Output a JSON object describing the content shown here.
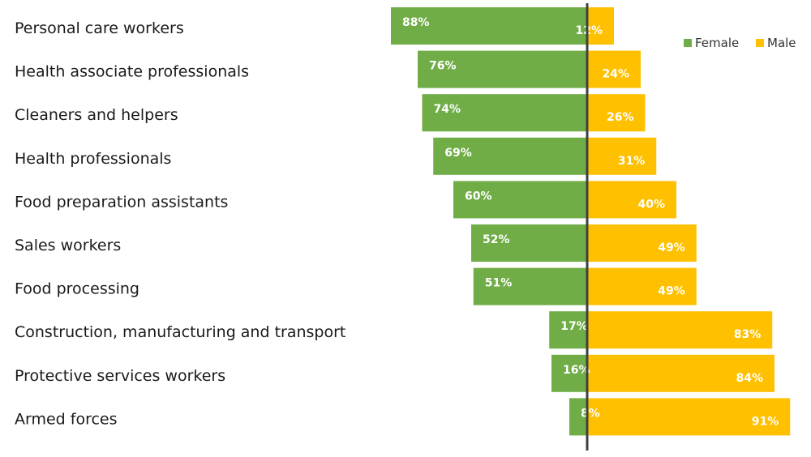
{
  "chart_data": {
    "type": "bar",
    "orientation": "horizontal-diverging",
    "categories": [
      "Personal care workers",
      "Health associate professionals",
      "Cleaners and helpers",
      "Health professionals",
      "Food preparation assistants",
      "Sales workers",
      "Food processing",
      "Construction, manufacturing and transport",
      "Protective services workers",
      "Armed forces"
    ],
    "series": [
      {
        "name": "Female",
        "color": "#70ad47",
        "values": [
          88,
          76,
          74,
          69,
          60,
          52,
          51,
          17,
          16,
          8
        ],
        "labels": [
          "88%",
          "76%",
          "74%",
          "69%",
          "60%",
          "52%",
          "51%",
          "17%",
          "16%",
          "8%"
        ]
      },
      {
        "name": "Male",
        "color": "#ffc000",
        "values": [
          12,
          24,
          26,
          31,
          40,
          49,
          49,
          83,
          84,
          91
        ],
        "labels": [
          "12%",
          "24%",
          "26%",
          "31%",
          "40%",
          "49%",
          "49%",
          "83%",
          "84%",
          "91%"
        ]
      }
    ],
    "title": "",
    "xlabel": "",
    "ylabel": "",
    "xlim": [
      -100,
      100
    ],
    "grid": false,
    "legend": "top-right",
    "axis_color": "#404040"
  }
}
